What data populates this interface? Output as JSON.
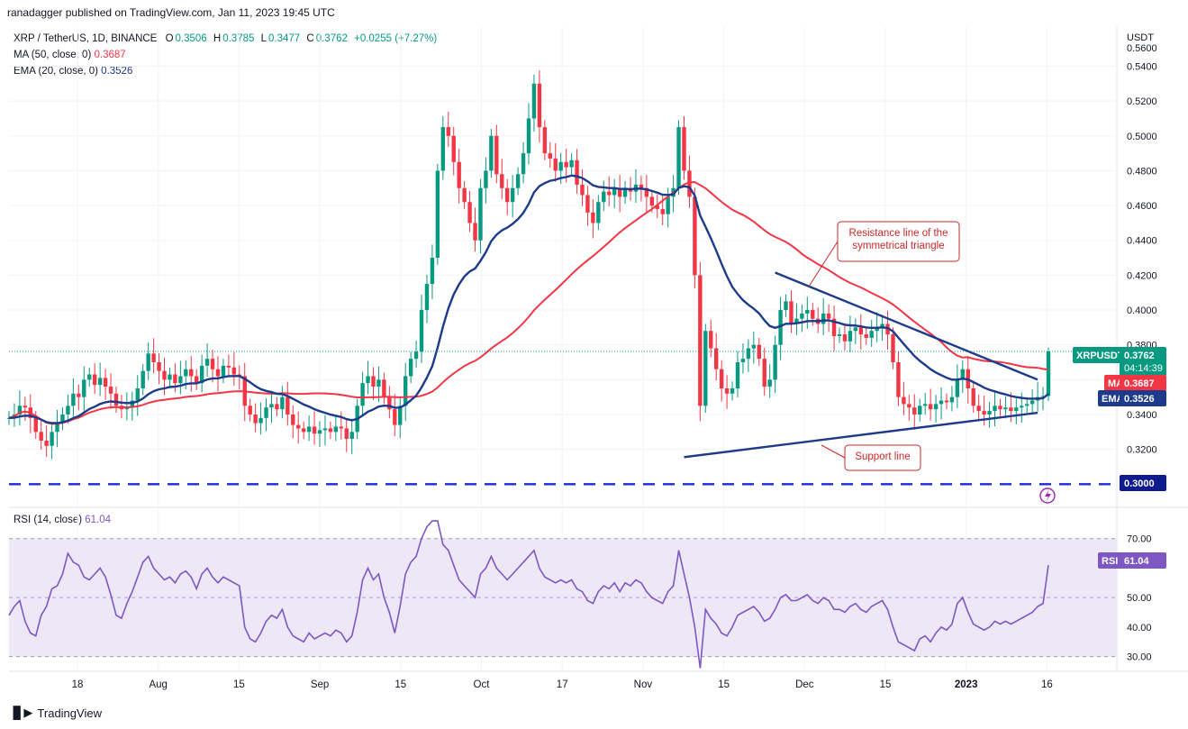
{
  "header": {
    "publisher_text": "ranadagger published on TradingView.com, Jan 11, 2023 19:45 UTC"
  },
  "legend": {
    "symbol": "XRP / TetherUS, 1D, BINANCE",
    "o_label": "O",
    "o_value": "0.3506",
    "h_label": "H",
    "h_value": "0.3785",
    "l_label": "L",
    "l_value": "0.3477",
    "c_label": "C",
    "c_value": "0.3762",
    "change": "+0.0255 (+7.27%)",
    "ma_label": "MA (50, close, 0)",
    "ma_value": "0.3687",
    "ema_label": "EMA (20, close, 0)",
    "ema_value": "0.3526"
  },
  "rsi_legend": {
    "label": "RSI (14, close)",
    "value": "61.04"
  },
  "footer": {
    "brand": "TradingView"
  },
  "colors": {
    "up": "#089981",
    "down": "#f23645",
    "ma": "#f23645",
    "ema": "#1e3a8a",
    "rsi": "#7e57c2",
    "trend": "#1e3a8a",
    "rsi_band": "#ede7f6"
  },
  "chart_data": {
    "type": "candlestick",
    "currency_label": "USDT",
    "x_labels": [
      "18",
      "Aug",
      "15",
      "Sep",
      "15",
      "Oct",
      "17",
      "Nov",
      "15",
      "Dec",
      "15",
      "2023",
      "16"
    ],
    "price_axis": {
      "range": [
        0.296,
        0.5625
      ],
      "ticks": [
        "0.5400",
        "0.5200",
        "0.5000",
        "0.4800",
        "0.4600",
        "0.4400",
        "0.4200",
        "0.4000",
        "0.3800",
        "0.3600",
        "0.3400",
        "0.3200"
      ],
      "top_partial_label": "0.5600"
    },
    "rsi_axis": {
      "range": [
        25,
        80
      ],
      "ticks": [
        "70.00",
        "50.00",
        "40.00",
        "30.00"
      ],
      "band": [
        30,
        70
      ],
      "mid": 50
    },
    "price_badges": {
      "last": {
        "name": "XRPUSDT",
        "value": "0.3762",
        "countdown": "04:14:39"
      },
      "ma": {
        "name": "MA",
        "value": "0.3687"
      },
      "ema": {
        "name": "EMA",
        "value": "0.3526"
      },
      "support_level": {
        "value": "0.3000"
      },
      "rsi": {
        "name": "RSI",
        "value": "61.04"
      }
    },
    "closes": [
      0.338,
      0.34,
      0.345,
      0.344,
      0.338,
      0.33,
      0.325,
      0.322,
      0.33,
      0.335,
      0.34,
      0.345,
      0.352,
      0.35,
      0.36,
      0.363,
      0.357,
      0.361,
      0.356,
      0.352,
      0.345,
      0.343,
      0.344,
      0.348,
      0.355,
      0.365,
      0.375,
      0.37,
      0.365,
      0.36,
      0.363,
      0.358,
      0.362,
      0.366,
      0.362,
      0.358,
      0.368,
      0.372,
      0.366,
      0.362,
      0.368,
      0.367,
      0.363,
      0.362,
      0.345,
      0.34,
      0.335,
      0.338,
      0.344,
      0.346,
      0.343,
      0.35,
      0.34,
      0.334,
      0.332,
      0.33,
      0.333,
      0.329,
      0.331,
      0.332,
      0.33,
      0.333,
      0.332,
      0.326,
      0.33,
      0.345,
      0.358,
      0.362,
      0.356,
      0.36,
      0.35,
      0.343,
      0.334,
      0.345,
      0.362,
      0.372,
      0.376,
      0.4,
      0.415,
      0.43,
      0.48,
      0.505,
      0.5,
      0.485,
      0.47,
      0.462,
      0.45,
      0.44,
      0.47,
      0.48,
      0.5,
      0.478,
      0.47,
      0.462,
      0.47,
      0.478,
      0.49,
      0.51,
      0.53,
      0.505,
      0.49,
      0.487,
      0.48,
      0.485,
      0.482,
      0.486,
      0.472,
      0.466,
      0.456,
      0.45,
      0.462,
      0.468,
      0.466,
      0.47,
      0.465,
      0.47,
      0.468,
      0.472,
      0.47,
      0.465,
      0.46,
      0.458,
      0.455,
      0.465,
      0.47,
      0.505,
      0.48,
      0.465,
      0.42,
      0.345,
      0.388,
      0.378,
      0.366,
      0.355,
      0.352,
      0.355,
      0.37,
      0.372,
      0.378,
      0.38,
      0.372,
      0.356,
      0.36,
      0.38,
      0.4,
      0.405,
      0.392,
      0.395,
      0.398,
      0.4,
      0.395,
      0.392,
      0.398,
      0.395,
      0.385,
      0.386,
      0.382,
      0.388,
      0.39,
      0.386,
      0.384,
      0.388,
      0.39,
      0.392,
      0.386,
      0.37,
      0.35,
      0.346,
      0.344,
      0.34,
      0.345,
      0.346,
      0.343,
      0.346,
      0.348,
      0.347,
      0.35,
      0.36,
      0.366,
      0.355,
      0.345,
      0.342,
      0.34,
      0.342,
      0.345,
      0.343,
      0.344,
      0.342,
      0.344,
      0.345,
      0.346,
      0.348,
      0.35,
      0.3506,
      0.3762
    ],
    "rsi_values": [
      44,
      47,
      49,
      42,
      38,
      37,
      44,
      47,
      53,
      54,
      58,
      65,
      62,
      61,
      57,
      56,
      58,
      60,
      57,
      51,
      44,
      43,
      48,
      52,
      57,
      62,
      64,
      60,
      58,
      56,
      57,
      55,
      58,
      59,
      57,
      53,
      58,
      60,
      57,
      55,
      57,
      56,
      55,
      54,
      40,
      36,
      35,
      38,
      42,
      44,
      43,
      46,
      40,
      37,
      36,
      35,
      38,
      36,
      37,
      38,
      37,
      39,
      38,
      35,
      37,
      45,
      56,
      60,
      56,
      58,
      50,
      45,
      38,
      47,
      58,
      62,
      64,
      70,
      74,
      76,
      76,
      68,
      66,
      61,
      56,
      54,
      52,
      50,
      58,
      60,
      64,
      60,
      58,
      56,
      58,
      60,
      62,
      64,
      66,
      60,
      57,
      56,
      55,
      56,
      55,
      56,
      53,
      52,
      49,
      48,
      52,
      54,
      53,
      55,
      52,
      55,
      54,
      56,
      55,
      52,
      50,
      49,
      48,
      52,
      54,
      66,
      58,
      50,
      40,
      26,
      46,
      43,
      41,
      38,
      37,
      40,
      44,
      45,
      46,
      47,
      45,
      42,
      43,
      46,
      50,
      51,
      49,
      49,
      50,
      51,
      49,
      48,
      50,
      49,
      46,
      46,
      45,
      47,
      48,
      46,
      45,
      47,
      48,
      49,
      46,
      40,
      35,
      34,
      33,
      32,
      36,
      37,
      35,
      38,
      40,
      39,
      41,
      48,
      50,
      45,
      41,
      40,
      39,
      40,
      42,
      41,
      42,
      41,
      42,
      43,
      44,
      45,
      47,
      48,
      61
    ]
  }
}
